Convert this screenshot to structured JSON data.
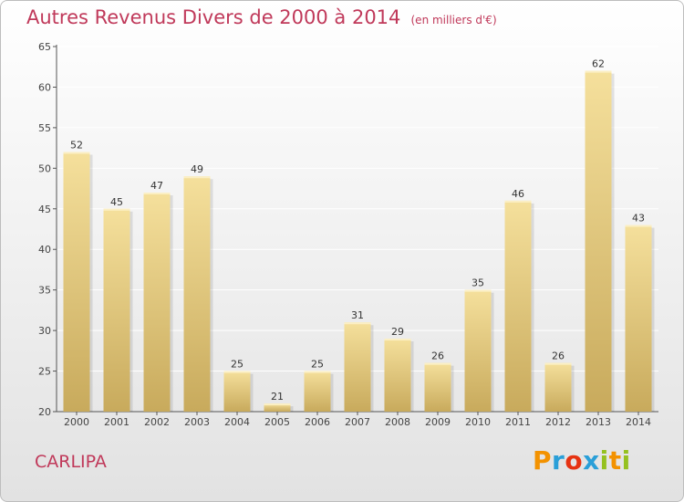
{
  "header": {
    "title": "Autres Revenus Divers de 2000 à 2014",
    "subtitle": "(en milliers d'€)"
  },
  "footer": {
    "commune": "CARLIPA",
    "brand_letters": [
      "P",
      "r",
      "o",
      "x",
      "i",
      "t",
      "i"
    ],
    "brand_colors": [
      "#f39200",
      "#2a9fd8",
      "#e63312",
      "#2a9fd8",
      "#95c11f",
      "#f39200",
      "#95c11f"
    ]
  },
  "colors": {
    "bar_light": "#f5e09c",
    "bar_dark": "#c8aa5c",
    "title": "#c0395a",
    "grid": "#ffffff"
  },
  "chart_data": {
    "type": "bar",
    "title": "Autres Revenus Divers de 2000 à 2014",
    "subtitle": "(en milliers d'€)",
    "xlabel": "",
    "ylabel": "",
    "categories": [
      "2000",
      "2001",
      "2002",
      "2003",
      "2004",
      "2005",
      "2006",
      "2007",
      "2008",
      "2009",
      "2010",
      "2011",
      "2012",
      "2013",
      "2014"
    ],
    "values": [
      52,
      45,
      47,
      49,
      25,
      21,
      25,
      31,
      29,
      26,
      35,
      46,
      26,
      62,
      43
    ],
    "ylim": [
      20,
      65
    ],
    "yticks": [
      20,
      25,
      30,
      35,
      40,
      45,
      50,
      55,
      60,
      65
    ],
    "grid": true,
    "legend": "none"
  }
}
